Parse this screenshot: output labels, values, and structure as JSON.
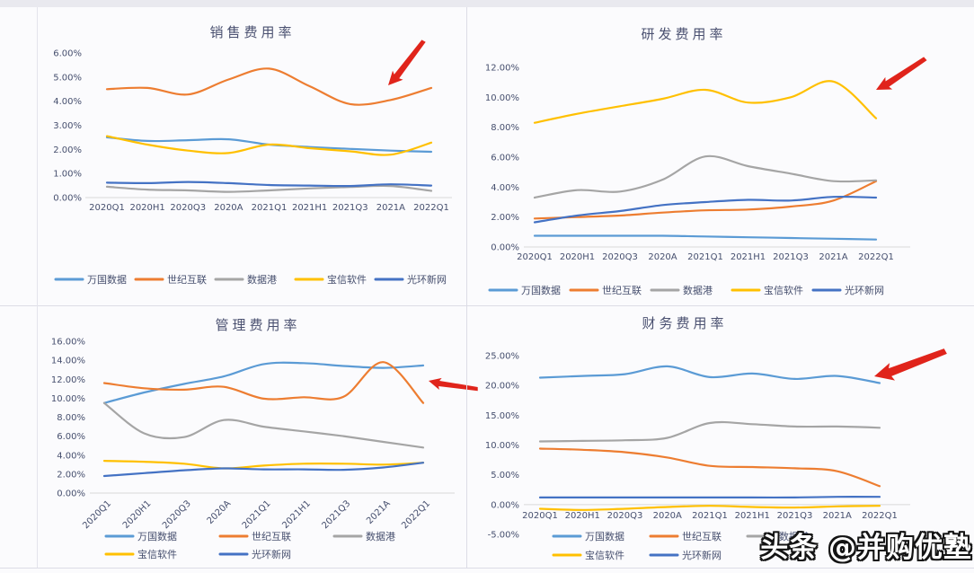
{
  "watermark": {
    "text": "头条 @并购优塾"
  },
  "colors": {
    "accent_red": "#e0241b",
    "axis_line": "#d9d9d9",
    "label_text": "#464f6e",
    "series": {
      "gds": "#5B9BD5",
      "vnet": "#ED7D31",
      "athub": "#A5A5A5",
      "baosight": "#FFC000",
      "sinnet": "#4472C4"
    }
  },
  "chart_data": [
    {
      "type": "line",
      "title": "销售费用率",
      "categories": [
        "2020Q1",
        "2020H1",
        "2020Q3",
        "2020A",
        "2021Q1",
        "2021H1",
        "2021Q3",
        "2021A",
        "2022Q1"
      ],
      "ylim": [
        0,
        6
      ],
      "yticks": [
        "6.00%",
        "5.00%",
        "4.00%",
        "3.00%",
        "2.00%",
        "1.00%",
        "0.00%"
      ],
      "ytick_values": [
        6,
        5,
        4,
        3,
        2,
        1,
        0
      ],
      "grid": "off",
      "legend_position": "bottom",
      "annotation": "red-arrow",
      "series": [
        {
          "key": "gds",
          "name": "万国数据",
          "color": "#5B9BD5",
          "values": [
            2.5,
            2.35,
            2.38,
            2.42,
            2.2,
            2.1,
            2.02,
            1.95,
            1.9
          ]
        },
        {
          "key": "vnet",
          "name": "世纪互联",
          "color": "#ED7D31",
          "values": [
            4.5,
            4.55,
            4.28,
            4.9,
            5.35,
            4.62,
            3.88,
            4.05,
            4.55
          ]
        },
        {
          "key": "athub",
          "name": "数据港",
          "color": "#A5A5A5",
          "values": [
            0.45,
            0.33,
            0.3,
            0.24,
            0.3,
            0.38,
            0.44,
            0.48,
            0.28
          ]
        },
        {
          "key": "baosight",
          "name": "宝信软件",
          "color": "#FFC000",
          "values": [
            2.55,
            2.2,
            1.95,
            1.85,
            2.2,
            2.05,
            1.92,
            1.78,
            2.28
          ]
        },
        {
          "key": "sinnet",
          "name": "光环新网",
          "color": "#4472C4",
          "values": [
            0.62,
            0.6,
            0.65,
            0.6,
            0.52,
            0.5,
            0.48,
            0.55,
            0.5
          ]
        }
      ]
    },
    {
      "type": "line",
      "title": "研发费用率",
      "categories": [
        "2020Q1",
        "2020H1",
        "2020Q3",
        "2020A",
        "2021Q1",
        "2021H1",
        "2021Q3",
        "2021A",
        "2022Q1"
      ],
      "ylim": [
        0,
        12
      ],
      "yticks": [
        "12.00%",
        "10.00%",
        "8.00%",
        "6.00%",
        "4.00%",
        "2.00%",
        "0.00%"
      ],
      "ytick_values": [
        12,
        10,
        8,
        6,
        4,
        2,
        0
      ],
      "grid": "off",
      "legend_position": "bottom",
      "annotation": "red-arrow",
      "series": [
        {
          "key": "gds",
          "name": "万国数据",
          "color": "#5B9BD5",
          "values": [
            0.75,
            0.75,
            0.75,
            0.75,
            0.7,
            0.65,
            0.6,
            0.55,
            0.5
          ]
        },
        {
          "key": "vnet",
          "name": "世纪互联",
          "color": "#ED7D31",
          "values": [
            1.9,
            2.0,
            2.1,
            2.3,
            2.45,
            2.5,
            2.7,
            3.1,
            4.4
          ]
        },
        {
          "key": "athub",
          "name": "数据港",
          "color": "#A5A5A5",
          "values": [
            3.3,
            3.8,
            3.7,
            4.5,
            6.05,
            5.4,
            4.9,
            4.4,
            4.45
          ]
        },
        {
          "key": "baosight",
          "name": "宝信软件",
          "color": "#FFC000",
          "values": [
            8.3,
            8.9,
            9.4,
            9.9,
            10.5,
            9.65,
            10.0,
            11.05,
            8.6
          ]
        },
        {
          "key": "sinnet",
          "name": "光环新网",
          "color": "#4472C4",
          "values": [
            1.65,
            2.1,
            2.4,
            2.8,
            3.0,
            3.15,
            3.1,
            3.35,
            3.3
          ]
        }
      ]
    },
    {
      "type": "line",
      "title": "管理费用率",
      "categories": [
        "2020Q1",
        "2020H1",
        "2020Q3",
        "2020A",
        "2021Q1",
        "2021H1",
        "2021Q3",
        "2021A",
        "2022Q1"
      ],
      "ylim": [
        0,
        16
      ],
      "yticks": [
        "16.00%",
        "14.00%",
        "12.00%",
        "10.00%",
        "8.00%",
        "6.00%",
        "4.00%",
        "2.00%",
        "0.00%"
      ],
      "ytick_values": [
        16,
        14,
        12,
        10,
        8,
        6,
        4,
        2,
        0
      ],
      "grid": "off",
      "legend_position": "bottom",
      "annotation": "red-arrow",
      "series": [
        {
          "key": "gds",
          "name": "万国数据",
          "color": "#5B9BD5",
          "values": [
            9.5,
            10.6,
            11.5,
            12.3,
            13.6,
            13.7,
            13.4,
            13.2,
            13.45
          ]
        },
        {
          "key": "vnet",
          "name": "世纪互联",
          "color": "#ED7D31",
          "values": [
            11.6,
            11.05,
            10.9,
            11.2,
            9.95,
            10.1,
            10.15,
            13.8,
            9.5
          ]
        },
        {
          "key": "athub",
          "name": "数据港",
          "color": "#A5A5A5",
          "values": [
            9.5,
            6.3,
            5.9,
            7.7,
            7.0,
            6.5,
            6.0,
            5.4,
            4.8
          ]
        },
        {
          "key": "baosight",
          "name": "宝信软件",
          "color": "#FFC000",
          "values": [
            3.4,
            3.3,
            3.1,
            2.6,
            2.9,
            3.1,
            3.1,
            3.0,
            3.2
          ]
        },
        {
          "key": "sinnet",
          "name": "光环新网",
          "color": "#4472C4",
          "values": [
            1.8,
            2.1,
            2.4,
            2.6,
            2.5,
            2.5,
            2.45,
            2.7,
            3.2
          ]
        }
      ]
    },
    {
      "type": "line",
      "title": "财务费用率",
      "categories": [
        "2020Q1",
        "2020H1",
        "2020Q3",
        "2020A",
        "2021Q1",
        "2021H1",
        "2021Q3",
        "2021A",
        "2022Q1"
      ],
      "ylim": [
        -5,
        25
      ],
      "yticks": [
        "25.00%",
        "20.00%",
        "15.00%",
        "10.00%",
        "5.00%",
        "0.00%",
        "-5.00%"
      ],
      "ytick_values": [
        25,
        20,
        15,
        10,
        5,
        0,
        -5
      ],
      "grid": "off",
      "legend_position": "bottom",
      "annotation": "red-arrow",
      "series": [
        {
          "key": "gds",
          "name": "万国数据",
          "color": "#5B9BD5",
          "values": [
            21.3,
            21.6,
            21.9,
            23.2,
            21.4,
            22.0,
            21.1,
            21.6,
            20.4
          ]
        },
        {
          "key": "vnet",
          "name": "世纪互联",
          "color": "#ED7D31",
          "values": [
            9.4,
            9.2,
            8.8,
            7.9,
            6.5,
            6.3,
            6.1,
            5.6,
            3.1
          ]
        },
        {
          "key": "athub",
          "name": "数据港",
          "color": "#A5A5A5",
          "values": [
            10.6,
            10.7,
            10.8,
            11.2,
            13.7,
            13.5,
            13.1,
            13.1,
            12.9
          ]
        },
        {
          "key": "baosight",
          "name": "宝信软件",
          "color": "#FFC000",
          "values": [
            -0.7,
            -0.9,
            -0.7,
            -0.4,
            -0.2,
            -0.4,
            -0.5,
            -0.3,
            -0.2
          ]
        },
        {
          "key": "sinnet",
          "name": "光环新网",
          "color": "#4472C4",
          "values": [
            1.2,
            1.2,
            1.2,
            1.2,
            1.2,
            1.2,
            1.2,
            1.3,
            1.3
          ]
        }
      ]
    }
  ]
}
